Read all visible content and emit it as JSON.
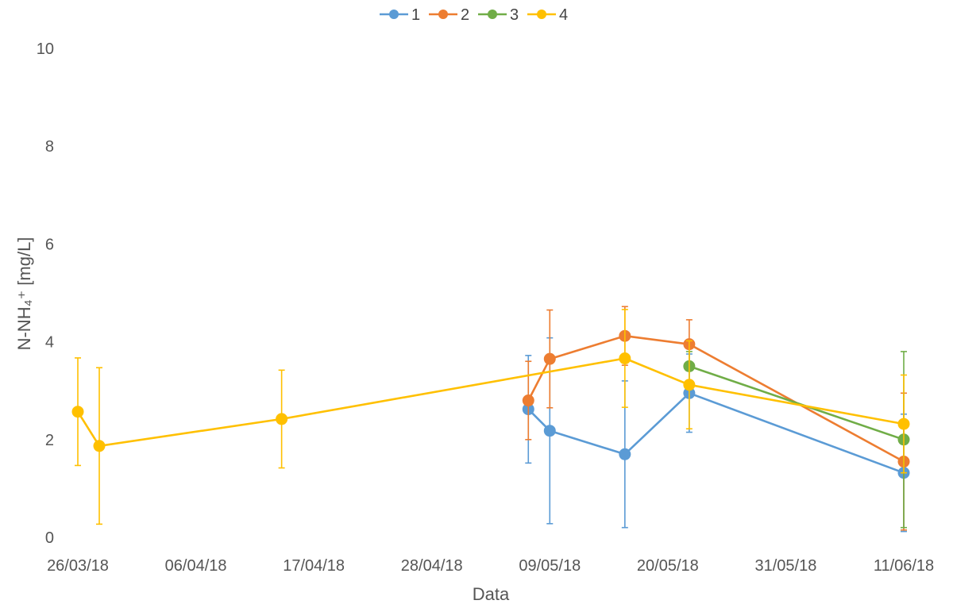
{
  "chart_data": {
    "type": "line",
    "xlabel": "Data",
    "ylabel": "N-NH₄⁺ [mg/L]",
    "ylim": [
      0,
      10
    ],
    "yticks": [
      "0",
      "2",
      "4",
      "6",
      "8",
      "10"
    ],
    "x_axis": {
      "start_date": "2018-03-26",
      "end_date": "2018-06-11",
      "tick_labels": [
        "26/03/18",
        "06/04/18",
        "17/04/18",
        "28/04/18",
        "09/05/18",
        "20/05/18",
        "31/05/18",
        "11/06/18"
      ],
      "tick_dates": [
        "2018-03-26",
        "2018-04-06",
        "2018-04-17",
        "2018-04-28",
        "2018-05-09",
        "2018-05-20",
        "2018-05-31",
        "2018-06-11"
      ]
    },
    "grid": false,
    "legend_position": "top",
    "series": [
      {
        "name": "1",
        "color": "#5b9bd5",
        "points": [
          {
            "date": "2018-05-07",
            "y": 2.62,
            "err": 1.1
          },
          {
            "date": "2018-05-09",
            "y": 2.18,
            "err": 1.9
          },
          {
            "date": "2018-05-16",
            "y": 1.7,
            "err": 1.5
          },
          {
            "date": "2018-05-22",
            "y": 2.95,
            "err": 0.8
          },
          {
            "date": "2018-06-11",
            "y": 1.32,
            "err": 1.2
          }
        ]
      },
      {
        "name": "2",
        "color": "#ed7d31",
        "points": [
          {
            "date": "2018-05-07",
            "y": 2.8,
            "err": 0.8
          },
          {
            "date": "2018-05-09",
            "y": 3.65,
            "err": 1.0
          },
          {
            "date": "2018-05-16",
            "y": 4.12,
            "err": 0.6
          },
          {
            "date": "2018-05-22",
            "y": 3.95,
            "err": 0.5
          },
          {
            "date": "2018-06-11",
            "y": 1.55,
            "err": 1.4
          }
        ]
      },
      {
        "name": "3",
        "color": "#70ad47",
        "points": [
          {
            "date": "2018-05-22",
            "y": 3.5,
            "err": 0.3
          },
          {
            "date": "2018-06-11",
            "y": 2.0,
            "err": 1.8
          }
        ]
      },
      {
        "name": "4",
        "color": "#ffc000",
        "points": [
          {
            "date": "2018-03-26",
            "y": 2.57,
            "err": 1.1
          },
          {
            "date": "2018-03-28",
            "y": 1.87,
            "err": 1.6
          },
          {
            "date": "2018-04-14",
            "y": 2.42,
            "err": 1.0
          },
          {
            "date": "2018-05-16",
            "y": 3.66,
            "err": 1.0
          },
          {
            "date": "2018-05-22",
            "y": 3.12,
            "err": 0.9
          },
          {
            "date": "2018-06-11",
            "y": 2.32,
            "err": 1.0
          }
        ]
      }
    ]
  }
}
